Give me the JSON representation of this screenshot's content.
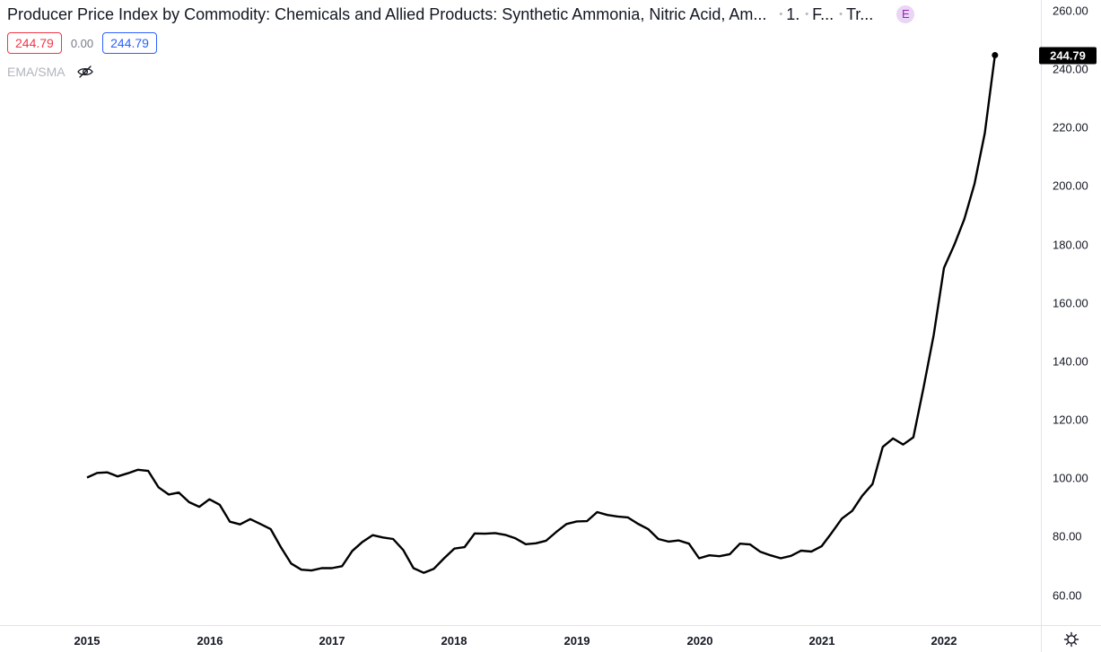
{
  "legend": {
    "title": "Producer Price Index by Commodity: Chemicals and Allied Products: Synthetic Ammonia, Nitric Acid, Am...",
    "meta": [
      "1.",
      "F...",
      "Tr..."
    ],
    "event_badge": "E",
    "value_open": "244.79",
    "value_change": "0.00",
    "value_close": "244.79",
    "indicator": "EMA/SMA",
    "indicator_icon": "eye-off-icon"
  },
  "last_price_label": "244.79",
  "settings_icon": "gear-icon",
  "colors": {
    "line": "#000000",
    "down": "#f23645",
    "up": "#2962ff",
    "badge_bg": "#e9d5f5",
    "badge_fg": "#9c27b0"
  },
  "chart_data": {
    "type": "line",
    "title": "Producer Price Index by Commodity: Chemicals and Allied Products: Synthetic Ammonia, Nitric Acid, Am...",
    "ylim": [
      55,
      264
    ],
    "y_ticks": [
      "60.00",
      "80.00",
      "100.00",
      "120.00",
      "140.00",
      "160.00",
      "180.00",
      "200.00",
      "220.00",
      "240.00",
      "260.00"
    ],
    "x_ticks": [
      "2015",
      "2016",
      "2017",
      "2018",
      "2019",
      "2020",
      "2021",
      "2022"
    ],
    "grid": false,
    "series": [
      {
        "x": [
          "2015-01",
          "2015-02",
          "2015-03",
          "2015-04",
          "2015-05",
          "2015-06",
          "2015-07",
          "2015-08",
          "2015-09",
          "2015-10",
          "2015-11",
          "2015-12",
          "2016-01",
          "2016-02",
          "2016-03",
          "2016-04",
          "2016-05",
          "2016-06",
          "2016-07",
          "2016-08",
          "2016-09",
          "2016-10",
          "2016-11",
          "2016-12",
          "2017-01",
          "2017-02",
          "2017-03",
          "2017-04",
          "2017-05",
          "2017-06",
          "2017-07",
          "2017-08",
          "2017-09",
          "2017-10",
          "2017-11",
          "2017-12",
          "2018-01",
          "2018-02",
          "2018-03",
          "2018-04",
          "2018-05",
          "2018-06",
          "2018-07",
          "2018-08",
          "2018-09",
          "2018-10",
          "2018-11",
          "2018-12",
          "2019-01",
          "2019-02",
          "2019-03",
          "2019-04",
          "2019-05",
          "2019-06",
          "2019-07",
          "2019-08",
          "2019-09",
          "2019-10",
          "2019-11",
          "2019-12",
          "2020-01",
          "2020-02",
          "2020-03",
          "2020-04",
          "2020-05",
          "2020-06",
          "2020-07",
          "2020-08",
          "2020-09",
          "2020-10",
          "2020-11",
          "2020-12",
          "2021-01",
          "2021-02",
          "2021-03",
          "2021-04",
          "2021-05",
          "2021-06",
          "2021-07",
          "2021-08",
          "2021-09",
          "2021-10",
          "2021-11",
          "2021-12",
          "2022-01",
          "2022-02",
          "2022-03",
          "2022-04",
          "2022-05"
        ],
        "y": [
          100.2,
          101.8,
          102.0,
          100.6,
          101.7,
          102.9,
          102.5,
          96.9,
          94.4,
          95.1,
          91.8,
          90.2,
          92.8,
          90.9,
          85.1,
          84.2,
          86.0,
          84.3,
          82.6,
          76.4,
          70.8,
          68.7,
          68.4,
          69.2,
          69.2,
          69.9,
          75.1,
          78.2,
          80.5,
          79.7,
          79.2,
          75.4,
          69.2,
          67.6,
          69.0,
          72.6,
          75.9,
          76.4,
          81.1,
          81.0,
          81.2,
          80.6,
          79.4,
          77.4,
          77.7,
          78.6,
          81.6,
          84.3,
          85.2,
          85.3,
          88.4,
          87.4,
          86.9,
          86.6,
          84.4,
          82.6,
          79.2,
          78.3,
          78.7,
          77.6,
          72.6,
          73.6,
          73.3,
          74.0,
          77.6,
          77.3,
          74.8,
          73.6,
          72.6,
          73.4,
          75.2,
          74.9,
          76.7,
          81.3,
          86.2,
          88.8,
          94.0,
          98.0,
          110.7,
          113.6,
          111.5,
          114.0,
          131.1,
          149.1,
          172.0,
          179.8,
          188.7,
          200.8,
          218.1
        ],
        "last": {
          "x": "2022-06",
          "y": 244.79
        }
      }
    ]
  }
}
